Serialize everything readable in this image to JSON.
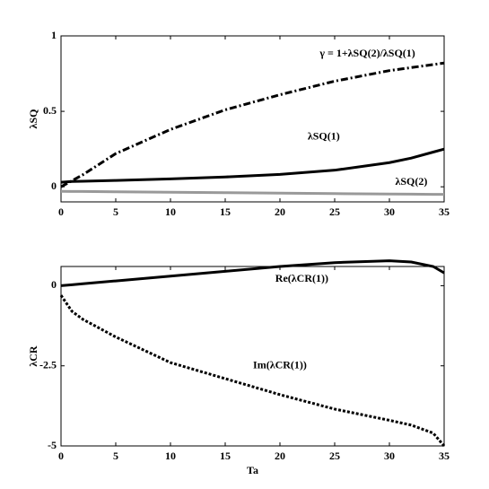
{
  "chart_data": [
    {
      "type": "line",
      "ylabel": "λSQ",
      "x": [
        0,
        1,
        2,
        5,
        10,
        15,
        20,
        25,
        30,
        32,
        34,
        35
      ],
      "series": [
        {
          "name": "γ = 1+λSQ(2)/λSQ(1)",
          "color": "#000000",
          "dash": "dashdot",
          "values": [
            0.0,
            0.04,
            0.08,
            0.22,
            0.38,
            0.51,
            0.61,
            0.7,
            0.77,
            0.79,
            0.81,
            0.82
          ]
        },
        {
          "name": "λSQ(1)",
          "color": "#000000",
          "dash": "solid",
          "values": [
            0.03,
            0.035,
            0.037,
            0.042,
            0.052,
            0.065,
            0.082,
            0.11,
            0.16,
            0.19,
            0.23,
            0.25
          ]
        },
        {
          "name": "λSQ(2)",
          "color": "#999999",
          "dash": "solid",
          "values": [
            -0.03,
            -0.031,
            -0.031,
            -0.033,
            -0.036,
            -0.039,
            -0.042,
            -0.045,
            -0.048,
            -0.049,
            -0.05,
            -0.05
          ]
        }
      ],
      "xlim": [
        0,
        35
      ],
      "xticks": [
        0,
        5,
        10,
        15,
        20,
        25,
        30,
        35
      ],
      "ylim": [
        -0.1,
        1
      ],
      "yticks": [
        0,
        0.5,
        1
      ]
    },
    {
      "type": "line",
      "ylabel": "λCR",
      "xlabel": "Ta",
      "x": [
        0,
        1,
        2,
        5,
        10,
        15,
        20,
        25,
        30,
        32,
        34,
        35
      ],
      "series": [
        {
          "name": "Re(λCR(1))",
          "color": "#000000",
          "dash": "solid",
          "values": [
            0.0,
            0.03,
            0.06,
            0.15,
            0.3,
            0.45,
            0.6,
            0.72,
            0.78,
            0.74,
            0.6,
            0.4
          ]
        },
        {
          "name": "Im(λCR(1))",
          "color": "#000000",
          "dash": "dotted",
          "values": [
            -0.3,
            -0.8,
            -1.05,
            -1.6,
            -2.4,
            -2.9,
            -3.4,
            -3.85,
            -4.2,
            -4.35,
            -4.6,
            -5.0
          ]
        }
      ],
      "xlim": [
        0,
        35
      ],
      "xticks": [
        0,
        5,
        10,
        15,
        20,
        25,
        30,
        35
      ],
      "ylim": [
        -5,
        0.6
      ],
      "yticks": [
        -5,
        -2.5,
        0
      ]
    }
  ]
}
